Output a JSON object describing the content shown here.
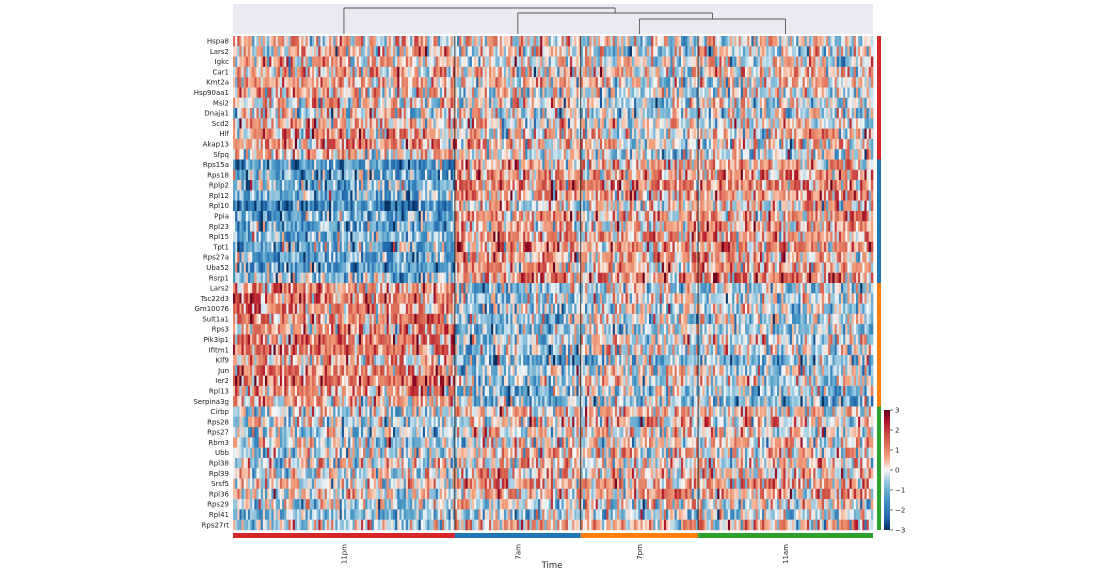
{
  "chart_data": {
    "type": "heatmap",
    "title": "",
    "xlabel": "Time",
    "ylabel": "",
    "genes": [
      "Hspa8",
      "Lars2",
      "Igkc",
      "Car1",
      "Kmt2a",
      "Hsp90aa1",
      "Msi2",
      "Dnaja1",
      "Scd2",
      "Hlf",
      "Akap13",
      "Sfpq",
      "Rps15a",
      "Rps18",
      "Rplp2",
      "Rpl12",
      "Rpl10",
      "Ppia",
      "Rpl23",
      "Rpl15",
      "Tpt1",
      "Rps27a",
      "Uba52",
      "Rsrp1",
      "Lars2",
      "Tsc22d3",
      "Gm10076",
      "Sult1a1",
      "Rps3",
      "Pik3ip1",
      "Ifitm1",
      "Klf9",
      "Jun",
      "Ier2",
      "Rpl13",
      "Serpina3g",
      "Cirbp",
      "Rps28",
      "Rps27",
      "Rbm3",
      "Ubb",
      "Rpl38",
      "Rpl39",
      "Srsf5",
      "Rpl36",
      "Rps29",
      "Rpl41",
      "Rps27rt"
    ],
    "gene_groups": [
      {
        "color": "#d62728",
        "start": 0,
        "count": 12
      },
      {
        "color": "#1f77b4",
        "start": 12,
        "count": 12
      },
      {
        "color": "#ff7f0e",
        "start": 24,
        "count": 12
      },
      {
        "color": "#2ca02c",
        "start": 36,
        "count": 12
      }
    ],
    "time_groups": [
      {
        "label": "11pm",
        "color": "#d62728",
        "fraction": 0.346
      },
      {
        "label": "7am",
        "color": "#1f77b4",
        "fraction": 0.196
      },
      {
        "label": "7pm",
        "color": "#ff7f0e",
        "fraction": 0.184
      },
      {
        "label": "11am",
        "color": "#2ca02c",
        "fraction": 0.274
      }
    ],
    "dendrogram": "((11pm),((7am),(7pm,11am)))",
    "colorbar": {
      "min": -3,
      "max": 3,
      "ticks": [
        "3",
        "2",
        "1",
        "0",
        "−1",
        "−2",
        "−3"
      ],
      "colormap": "RdBu_r"
    },
    "cells_per_row": 300,
    "group_row_bias": [
      [
        0.3,
        0.1,
        -0.1,
        0.0
      ],
      [
        -0.7,
        0.5,
        0.4,
        0.5
      ],
      [
        0.6,
        -0.4,
        -0.1,
        -0.2
      ],
      [
        -0.2,
        0.1,
        0.1,
        0.1
      ]
    ],
    "group_row_bias_note": ""
  }
}
